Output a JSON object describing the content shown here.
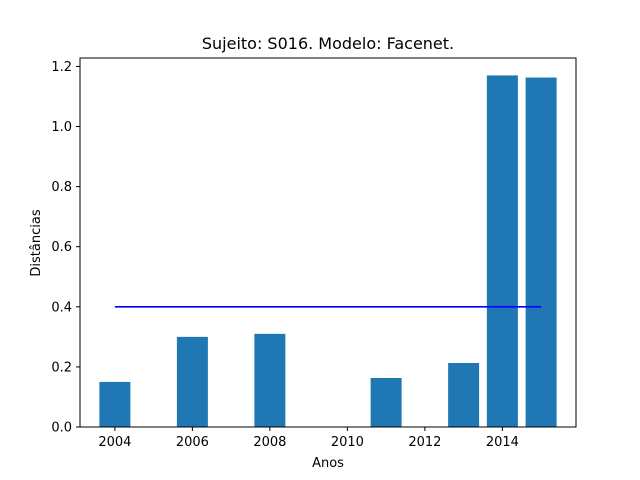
{
  "chart_data": {
    "type": "bar",
    "title": "Sujeito: S016. Modelo: Facenet.",
    "xlabel": "Anos",
    "ylabel": "Distâncias",
    "x": [
      2004,
      2006,
      2008,
      2011,
      2013,
      2014,
      2015
    ],
    "values": [
      0.15,
      0.3,
      0.31,
      0.163,
      0.213,
      1.17,
      1.163
    ],
    "bar_width_years": 0.8,
    "bar_color": "#1f77b4",
    "threshold_line": {
      "x_range": [
        2004,
        2015
      ],
      "y": 0.4,
      "color": "#0000ff"
    },
    "xlim": [
      2003.1,
      2015.9
    ],
    "ylim": [
      0,
      1.228
    ],
    "xticks": [
      "2004",
      "2006",
      "2008",
      "2010",
      "2012",
      "2014"
    ],
    "yticks": [
      "0.0",
      "0.2",
      "0.4",
      "0.6",
      "0.8",
      "1.0",
      "1.2"
    ],
    "grid": false,
    "legend": "none"
  }
}
